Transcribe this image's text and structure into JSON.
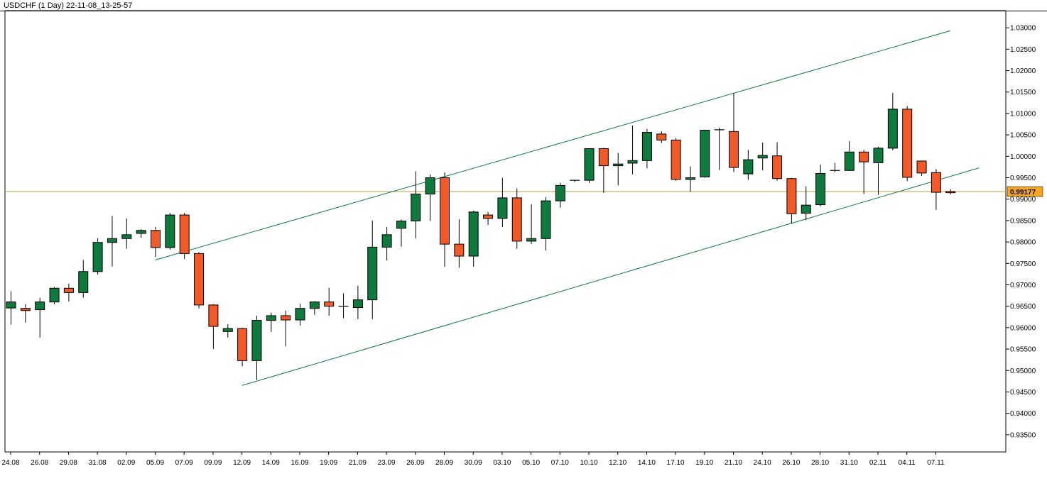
{
  "chart_data": {
    "type": "candlestick",
    "title": "USDCHF (1 Day) 22-11-08_13-25-57",
    "current_price": 0.99177,
    "current_price_label": "0.99177",
    "ylim": [
      0.931,
      1.034
    ],
    "y_ticks": [
      "1.03000",
      "1.02500",
      "1.02000",
      "1.01500",
      "1.01000",
      "1.00500",
      "1.00000",
      "0.99500",
      "0.99000",
      "0.98500",
      "0.98000",
      "0.97500",
      "0.97000",
      "0.96500",
      "0.96000",
      "0.95500",
      "0.95000",
      "0.94500",
      "0.94000",
      "0.93500"
    ],
    "x_tick_labels": [
      {
        "label": "24.08",
        "index": 0
      },
      {
        "label": "26.08",
        "index": 2
      },
      {
        "label": "29.08",
        "index": 4
      },
      {
        "label": "31.08",
        "index": 6
      },
      {
        "label": "02.09",
        "index": 8
      },
      {
        "label": "05.09",
        "index": 10
      },
      {
        "label": "07.09",
        "index": 12
      },
      {
        "label": "09.09",
        "index": 14
      },
      {
        "label": "12.09",
        "index": 16
      },
      {
        "label": "14.09",
        "index": 18
      },
      {
        "label": "16.09",
        "index": 20
      },
      {
        "label": "19.09",
        "index": 22
      },
      {
        "label": "21.09",
        "index": 24
      },
      {
        "label": "23.09",
        "index": 26
      },
      {
        "label": "26.09",
        "index": 28
      },
      {
        "label": "28.09",
        "index": 30
      },
      {
        "label": "30.09",
        "index": 32
      },
      {
        "label": "03.10",
        "index": 34
      },
      {
        "label": "05.10",
        "index": 36
      },
      {
        "label": "07.10",
        "index": 38
      },
      {
        "label": "10.10",
        "index": 40
      },
      {
        "label": "12.10",
        "index": 42
      },
      {
        "label": "14.10",
        "index": 44
      },
      {
        "label": "17.10",
        "index": 46
      },
      {
        "label": "19.10",
        "index": 48
      },
      {
        "label": "21.10",
        "index": 50
      },
      {
        "label": "24.10",
        "index": 52
      },
      {
        "label": "26.10",
        "index": 54
      },
      {
        "label": "28.10",
        "index": 56
      },
      {
        "label": "31.10",
        "index": 58
      },
      {
        "label": "02.11",
        "index": 60
      },
      {
        "label": "04.11",
        "index": 62
      },
      {
        "label": "07.11",
        "index": 64
      }
    ],
    "candles": [
      {
        "date": "24.08",
        "o": 0.9646,
        "h": 0.9685,
        "l": 0.9607,
        "c": 0.966
      },
      {
        "date": "25.08",
        "o": 0.9645,
        "h": 0.9655,
        "l": 0.9612,
        "c": 0.964
      },
      {
        "date": "26.08",
        "o": 0.9642,
        "h": 0.967,
        "l": 0.9577,
        "c": 0.966
      },
      {
        "date": "29.08",
        "o": 0.966,
        "h": 0.9695,
        "l": 0.9655,
        "c": 0.9692
      },
      {
        "date": "30.08",
        "o": 0.9692,
        "h": 0.9703,
        "l": 0.9661,
        "c": 0.9682
      },
      {
        "date": "31.08",
        "o": 0.9682,
        "h": 0.9758,
        "l": 0.967,
        "c": 0.9731
      },
      {
        "date": "01.09",
        "o": 0.9731,
        "h": 0.9809,
        "l": 0.9724,
        "c": 0.9799
      },
      {
        "date": "02.09",
        "o": 0.9799,
        "h": 0.9861,
        "l": 0.9743,
        "c": 0.9808
      },
      {
        "date": "05.09",
        "o": 0.9808,
        "h": 0.9855,
        "l": 0.9784,
        "c": 0.9817
      },
      {
        "date": "06.09",
        "o": 0.982,
        "h": 0.983,
        "l": 0.981,
        "c": 0.9827
      },
      {
        "date": "07.09",
        "o": 0.9827,
        "h": 0.9835,
        "l": 0.9765,
        "c": 0.9787
      },
      {
        "date": "08.09",
        "o": 0.9787,
        "h": 0.9868,
        "l": 0.9782,
        "c": 0.9863
      },
      {
        "date": "09.09",
        "o": 0.9863,
        "h": 0.9868,
        "l": 0.976,
        "c": 0.9773
      },
      {
        "date": "12.09",
        "o": 0.9773,
        "h": 0.9776,
        "l": 0.9645,
        "c": 0.9653
      },
      {
        "date": "13.09",
        "o": 0.9653,
        "h": 0.9655,
        "l": 0.955,
        "c": 0.9603
      },
      {
        "date": "14.09",
        "o": 0.9591,
        "h": 0.9608,
        "l": 0.9577,
        "c": 0.9598
      },
      {
        "date": "15.09",
        "o": 0.9598,
        "h": 0.96,
        "l": 0.951,
        "c": 0.9523
      },
      {
        "date": "16.09",
        "o": 0.9523,
        "h": 0.9628,
        "l": 0.9478,
        "c": 0.9617
      },
      {
        "date": "19.09",
        "o": 0.9617,
        "h": 0.9635,
        "l": 0.959,
        "c": 0.9628
      },
      {
        "date": "20.09",
        "o": 0.9628,
        "h": 0.964,
        "l": 0.9556,
        "c": 0.9618
      },
      {
        "date": "21.09",
        "o": 0.9618,
        "h": 0.9656,
        "l": 0.9605,
        "c": 0.9645
      },
      {
        "date": "22.09",
        "o": 0.9645,
        "h": 0.9662,
        "l": 0.963,
        "c": 0.966
      },
      {
        "date": "23.09",
        "o": 0.966,
        "h": 0.9693,
        "l": 0.9628,
        "c": 0.965
      },
      {
        "date": "26.09",
        "o": 0.9648,
        "h": 0.968,
        "l": 0.9622,
        "c": 0.965
      },
      {
        "date": "27.09",
        "o": 0.9647,
        "h": 0.9698,
        "l": 0.962,
        "c": 0.9665
      },
      {
        "date": "28.09",
        "o": 0.9665,
        "h": 0.985,
        "l": 0.962,
        "c": 0.9788
      },
      {
        "date": "29.09",
        "o": 0.9788,
        "h": 0.9835,
        "l": 0.9757,
        "c": 0.9817
      },
      {
        "date": "30.09",
        "o": 0.9832,
        "h": 0.9852,
        "l": 0.9789,
        "c": 0.9849
      },
      {
        "date": "03.10",
        "o": 0.9849,
        "h": 0.9965,
        "l": 0.9808,
        "c": 0.9912
      },
      {
        "date": "04.10",
        "o": 0.9912,
        "h": 0.9958,
        "l": 0.9849,
        "c": 0.995
      },
      {
        "date": "05.10",
        "o": 0.995,
        "h": 0.9962,
        "l": 0.9742,
        "c": 0.9795
      },
      {
        "date": "06.10",
        "o": 0.9795,
        "h": 0.9853,
        "l": 0.974,
        "c": 0.9767
      },
      {
        "date": "07.10",
        "o": 0.9767,
        "h": 0.9873,
        "l": 0.9742,
        "c": 0.987
      },
      {
        "date": "10.10",
        "o": 0.9863,
        "h": 0.987,
        "l": 0.984,
        "c": 0.9855
      },
      {
        "date": "11.10",
        "o": 0.9855,
        "h": 0.995,
        "l": 0.9835,
        "c": 0.9903
      },
      {
        "date": "12.10",
        "o": 0.9903,
        "h": 0.9925,
        "l": 0.9784,
        "c": 0.9802
      },
      {
        "date": "13.10",
        "o": 0.9802,
        "h": 0.9888,
        "l": 0.9795,
        "c": 0.9808
      },
      {
        "date": "14.10",
        "o": 0.9808,
        "h": 0.9905,
        "l": 0.978,
        "c": 0.9896
      },
      {
        "date": "17.10",
        "o": 0.9896,
        "h": 0.9938,
        "l": 0.988,
        "c": 0.9932
      },
      {
        "date": "18.10",
        "o": 0.9942,
        "h": 0.9945,
        "l": 0.994,
        "c": 0.9944
      },
      {
        "date": "19.10",
        "o": 0.9944,
        "h": 1.0018,
        "l": 0.9938,
        "c": 1.0018
      },
      {
        "date": "20.10",
        "o": 1.0018,
        "h": 1.002,
        "l": 0.9915,
        "c": 0.9978
      },
      {
        "date": "21.10",
        "o": 0.9978,
        "h": 1.0008,
        "l": 0.9932,
        "c": 0.9982
      },
      {
        "date": "24.10",
        "o": 0.9984,
        "h": 1.0072,
        "l": 0.9958,
        "c": 0.999
      },
      {
        "date": "25.10",
        "o": 0.999,
        "h": 1.0064,
        "l": 0.9972,
        "c": 1.0056
      },
      {
        "date": "26.10",
        "o": 1.0052,
        "h": 1.0059,
        "l": 1.0031,
        "c": 1.0038
      },
      {
        "date": "27.10",
        "o": 1.0038,
        "h": 1.0043,
        "l": 0.9943,
        "c": 0.9946
      },
      {
        "date": "28.10",
        "o": 0.9946,
        "h": 0.9976,
        "l": 0.9917,
        "c": 0.995
      },
      {
        "date": "31.10",
        "o": 0.9952,
        "h": 1.0062,
        "l": 0.995,
        "c": 1.0061
      },
      {
        "date": "01.11",
        "o": 1.0061,
        "h": 1.0067,
        "l": 0.9968,
        "c": 1.0062
      },
      {
        "date": "02.11",
        "o": 1.0058,
        "h": 1.0148,
        "l": 0.9963,
        "c": 0.9974
      },
      {
        "date": "03.11",
        "o": 0.9959,
        "h": 1.0015,
        "l": 0.9945,
        "c": 0.9992
      },
      {
        "date": "04.11",
        "o": 0.9996,
        "h": 1.0032,
        "l": 0.9967,
        "c": 1.0002
      },
      {
        "date": "07.11",
        "o": 1.0001,
        "h": 1.0033,
        "l": 0.9943,
        "c": 0.9948
      },
      {
        "date": "08.11",
        "o": 0.9948,
        "h": 0.995,
        "l": 0.9843,
        "c": 0.9866
      },
      {
        "date": "09.11",
        "o": 0.9867,
        "h": 0.993,
        "l": 0.9851,
        "c": 0.9886
      },
      {
        "date": "10.11",
        "o": 0.9887,
        "h": 0.9981,
        "l": 0.9883,
        "c": 0.996
      },
      {
        "date": "11.11",
        "o": 0.9966,
        "h": 0.9985,
        "l": 0.9963,
        "c": 0.9967
      },
      {
        "date": "14.11",
        "o": 0.9967,
        "h": 1.0035,
        "l": 0.9966,
        "c": 1.001
      },
      {
        "date": "15.11",
        "o": 1.001,
        "h": 1.0015,
        "l": 0.9912,
        "c": 0.9987
      },
      {
        "date": "16.11",
        "o": 0.9985,
        "h": 1.0022,
        "l": 0.991,
        "c": 1.0019
      },
      {
        "date": "17.11",
        "o": 1.0019,
        "h": 1.0148,
        "l": 1.0014,
        "c": 1.011
      },
      {
        "date": "18.11",
        "o": 1.011,
        "h": 1.0117,
        "l": 0.9942,
        "c": 0.9951
      },
      {
        "date": "21.11",
        "o": 0.9989,
        "h": 0.999,
        "l": 0.9954,
        "c": 0.9961
      },
      {
        "date": "22.11",
        "o": 0.9962,
        "h": 0.997,
        "l": 0.9875,
        "c": 0.9916
      },
      {
        "date": "23.11",
        "o": 0.9918,
        "h": 0.9923,
        "l": 0.9911,
        "c": 0.9915
      }
    ],
    "trendlines": [
      {
        "name": "",
        "start_index": 10,
        "start_price": 0.9758,
        "end_index": 65,
        "end_price": 1.0293
      },
      {
        "name": "",
        "start_index": 16,
        "start_price": 0.9465,
        "end_index": 67,
        "end_price": 0.9973
      }
    ],
    "colors": {
      "bull": "#0e7a3e",
      "bear": "#f05a28",
      "wick": "#000000",
      "channel_line": "#0e7a3e",
      "price_line": "#b5a040",
      "price_label_bg": "#f5a623",
      "axis": "#000000"
    },
    "grid": false
  }
}
